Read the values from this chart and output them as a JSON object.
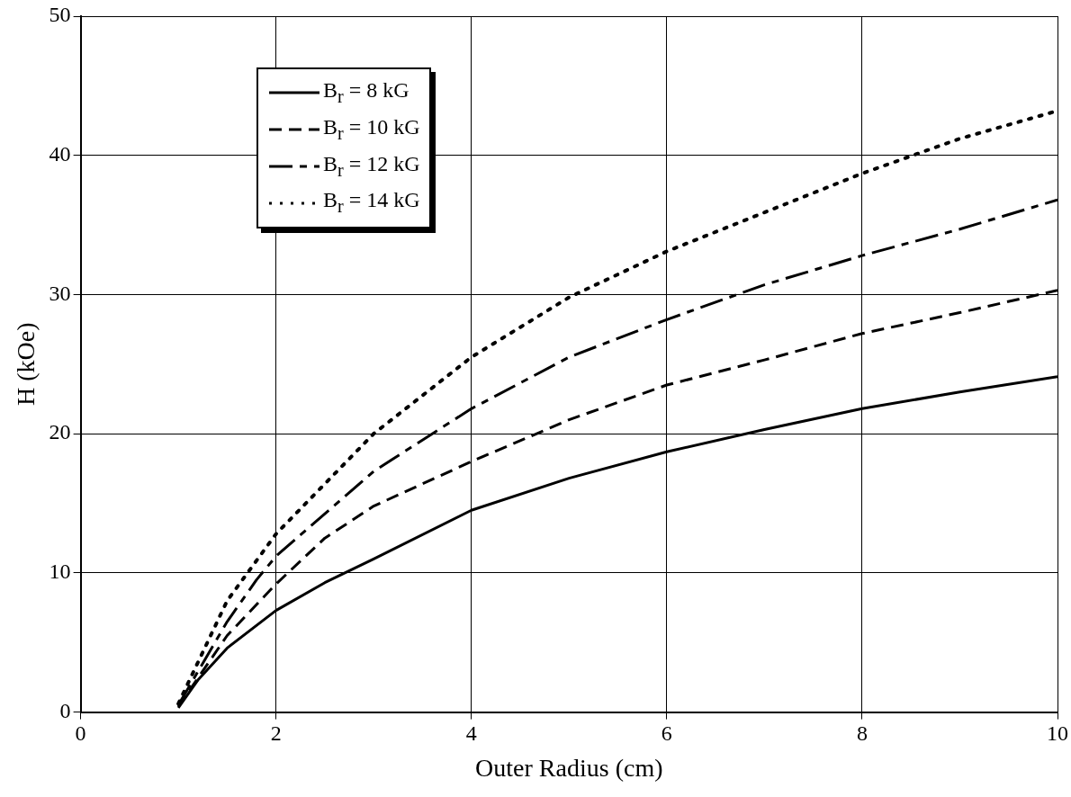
{
  "chart_data": {
    "type": "line",
    "xlabel": "Outer Radius (cm)",
    "ylabel": "H (kOe)",
    "xlim": [
      0,
      10
    ],
    "ylim": [
      0,
      50
    ],
    "xticks": [
      0,
      2,
      4,
      6,
      8,
      10
    ],
    "yticks": [
      0,
      10,
      20,
      30,
      40,
      50
    ],
    "grid": true,
    "legend": "top left",
    "marker": "none",
    "series": [
      {
        "name": "B$_{r}$ = 8 kG",
        "color": "#000000",
        "line_style": "solid",
        "x": [
          1,
          1.2,
          1.5,
          2,
          2.5,
          3,
          4,
          5,
          6,
          7,
          8,
          9,
          10
        ],
        "values": [
          0.3,
          2.3,
          4.6,
          7.3,
          9.3,
          11,
          14.5,
          16.8,
          18.7,
          20.3,
          21.8,
          23,
          24.1
        ]
      },
      {
        "name": "B$_{r}$ = 10 kG",
        "color": "#000000",
        "line_style": "dashed",
        "x": [
          1,
          1.5,
          2,
          2.5,
          3,
          4,
          5,
          6,
          7,
          8,
          9,
          10
        ],
        "values": [
          0.4,
          5.5,
          9.2,
          12.5,
          14.8,
          18,
          21,
          23.5,
          25.3,
          27.2,
          28.7,
          30.3
        ]
      },
      {
        "name": "B$_{r}$ = 12 kG",
        "color": "#000000",
        "line_style": "dashdot",
        "x": [
          1,
          1.5,
          1.8,
          2,
          3,
          4,
          5,
          6,
          7,
          8,
          9,
          10
        ],
        "values": [
          0.5,
          6.5,
          9.5,
          11.2,
          17.3,
          21.8,
          25.5,
          28.2,
          30.7,
          32.8,
          34.7,
          36.8
        ]
      },
      {
        "name": "B$_{r}$ = 14 kG",
        "color": "#000000",
        "line_style": "dotted",
        "x": [
          1,
          1.5,
          2,
          3,
          4,
          5,
          6,
          7,
          8,
          9,
          10
        ],
        "values": [
          0.6,
          8,
          12.8,
          20,
          25.5,
          29.8,
          33.1,
          35.9,
          38.7,
          41.2,
          43.2
        ]
      }
    ]
  }
}
